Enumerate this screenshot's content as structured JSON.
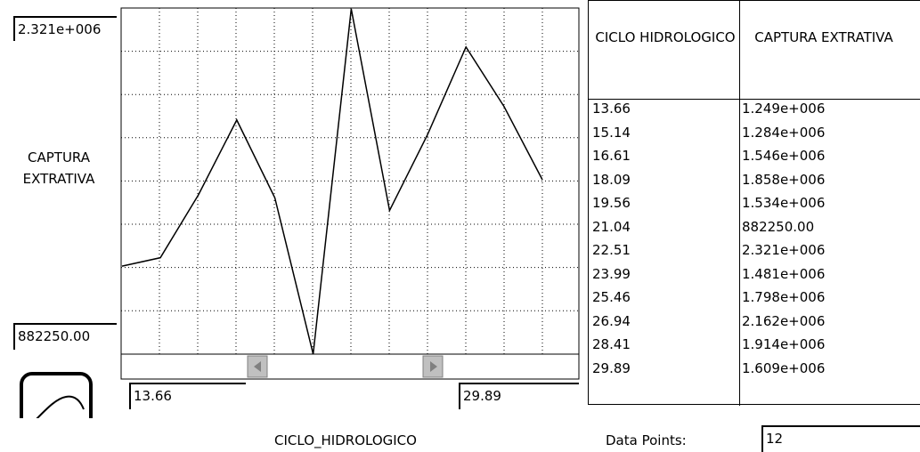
{
  "chart_data": {
    "type": "line",
    "y_label": "CAPTURA EXTRATIVA",
    "x_label": "CICLO_HIDROLOGICO",
    "x": [
      13.66,
      15.14,
      16.61,
      18.09,
      19.56,
      21.04,
      22.51,
      23.99,
      25.46,
      26.94,
      28.41,
      29.89
    ],
    "values": [
      1249000,
      1284000,
      1546000,
      1858000,
      1534000,
      882250,
      2321000,
      1481000,
      1798000,
      2162000,
      1914000,
      1609000
    ],
    "color": "#000000",
    "xlim": [
      13.66,
      29.89
    ],
    "xticks": [
      13.66,
      29.89
    ],
    "ylim": [
      882250,
      2321000
    ],
    "yticks": [
      {
        "value": 882250,
        "label": "882250.00"
      },
      {
        "value": 2321000,
        "label": "2.321e+006"
      }
    ],
    "grid": true
  },
  "table": {
    "headers": [
      "CICLO HIDROLOGICO",
      "CAPTURA EXTRATIVA"
    ],
    "rows": [
      [
        "13.66",
        "1.249e+006"
      ],
      [
        "15.14",
        "1.284e+006"
      ],
      [
        "16.61",
        "1.546e+006"
      ],
      [
        "18.09",
        "1.858e+006"
      ],
      [
        "19.56",
        "1.534e+006"
      ],
      [
        "21.04",
        "882250.00"
      ],
      [
        "22.51",
        "2.321e+006"
      ],
      [
        "23.99",
        "1.481e+006"
      ],
      [
        "25.46",
        "1.798e+006"
      ],
      [
        "26.94",
        "2.162e+006"
      ],
      [
        "28.41",
        "1.914e+006"
      ],
      [
        "29.89",
        "1.609e+006"
      ]
    ]
  },
  "data_points": {
    "label": "Data Points:",
    "value": "12"
  }
}
